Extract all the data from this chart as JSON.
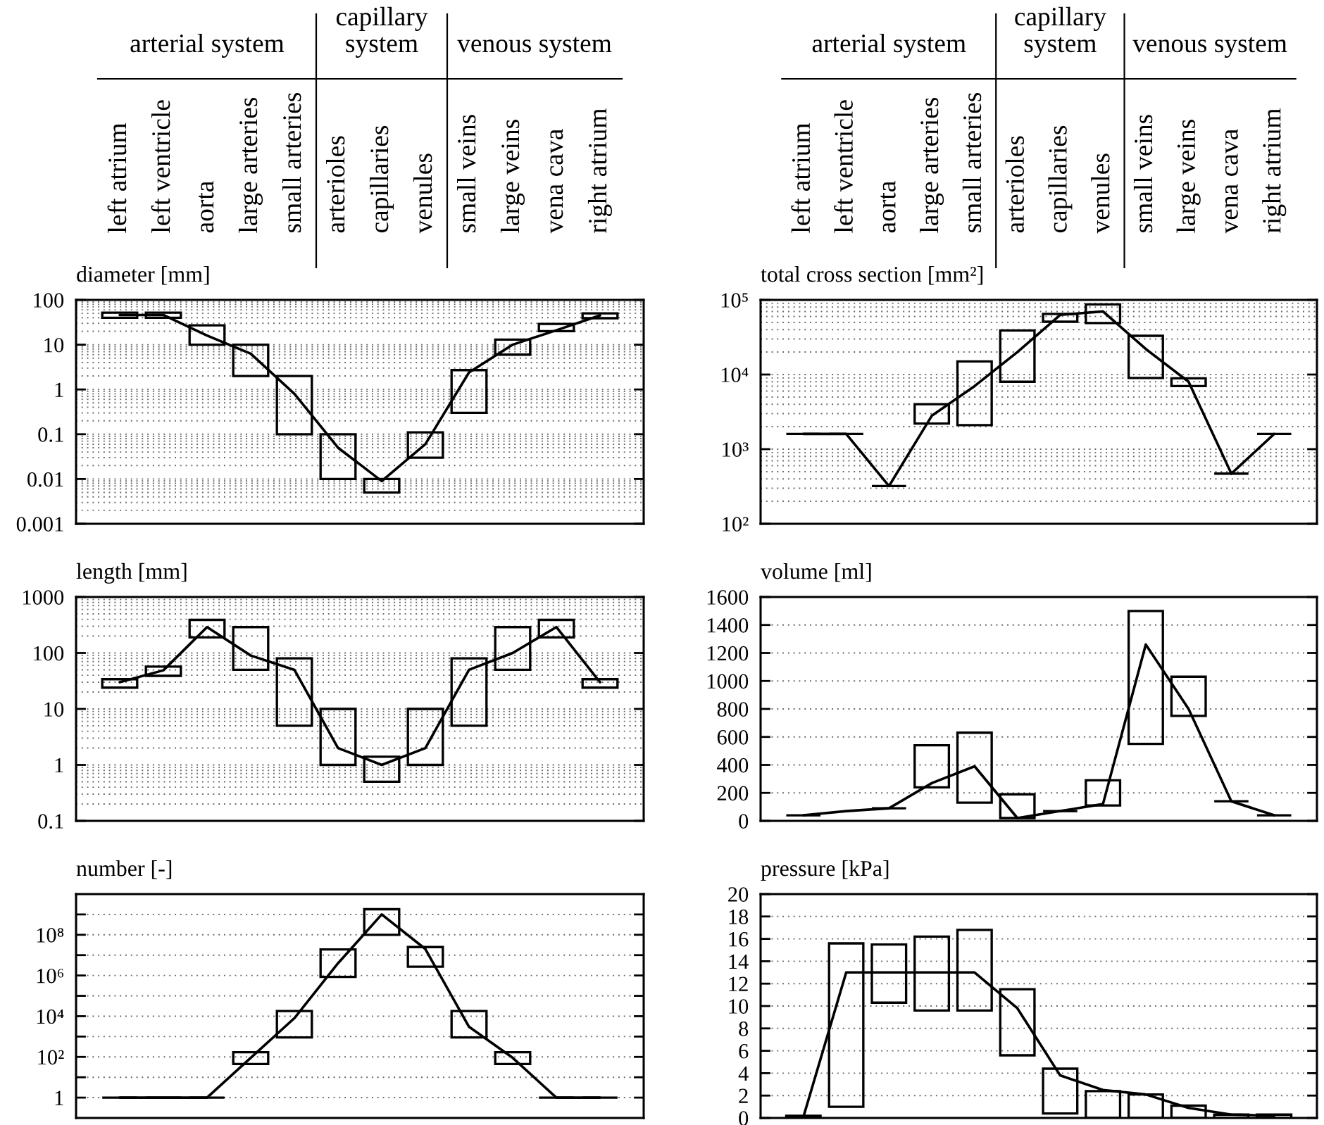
{
  "chart_data": [
    {
      "type": "bar",
      "ylabel": "diameter [mm]",
      "categories": [
        "left atrium",
        "left ventricle",
        "aorta",
        "large arteries",
        "small arteries",
        "arterioles",
        "capillaries",
        "venules",
        "small veins",
        "large veins",
        "vena cava",
        "right atrium"
      ],
      "log": true,
      "ylim": [
        0.001,
        100
      ],
      "yticks": [
        0.001,
        0.01,
        0.1,
        1,
        10,
        100
      ],
      "grid": true,
      "annotations": [
        "arterial system",
        "capillary\nsystem",
        "venous system"
      ],
      "series": [
        {
          "color": "#000000",
          "base": [
            40,
            40,
            10,
            2,
            0.1,
            0.01,
            0.005,
            0.03,
            0.3,
            6,
            20,
            39
          ],
          "values": [
            12,
            12,
            17,
            8,
            1.9,
            0.09,
            0.005,
            0.08,
            2.4,
            7,
            9,
            11
          ]
        },
        {
          "type": "line",
          "color": "#000000",
          "values": [
            46,
            46,
            16,
            6.3,
            0.8,
            0.05,
            0.009,
            0.06,
            2.4,
            10,
            21,
            45
          ]
        }
      ]
    },
    {
      "type": "bar",
      "ylabel": "total cross section [mm²]",
      "categories": [
        "left atrium",
        "left ventricle",
        "aorta",
        "large arteries",
        "small arteries",
        "arterioles",
        "capillaries",
        "venules",
        "small veins",
        "large veins",
        "vena cava",
        "right atrium"
      ],
      "log": true,
      "ylim": [
        100,
        100000
      ],
      "yticks": [
        {
          "value": 100,
          "label": "10²"
        },
        {
          "value": 1000,
          "label": "10³"
        },
        {
          "value": 10000,
          "label": "10⁴"
        },
        {
          "value": 100000,
          "label": "10⁵"
        }
      ],
      "grid": true,
      "annotations": [
        "arterial system",
        "capillary\nsystem",
        "venous system"
      ],
      "series": [
        {
          "color": "#000000",
          "base": [
            1600,
            1600,
            320,
            2200,
            2100,
            8000,
            51000,
            49000,
            9000,
            7000,
            470,
            1600
          ],
          "values": [
            0,
            0,
            0,
            1800,
            12900,
            31000,
            14000,
            38000,
            24000,
            1900,
            0,
            0
          ]
        },
        {
          "type": "line",
          "color": "#000000",
          "values": [
            1600,
            1600,
            320,
            2800,
            7000,
            20000,
            63000,
            70000,
            22000,
            8000,
            470,
            1600
          ]
        }
      ]
    },
    {
      "type": "bar",
      "ylabel": "length [mm]",
      "categories": [
        "left atrium",
        "left ventricle",
        "aorta",
        "large arteries",
        "small arteries",
        "arterioles",
        "capillaries",
        "venules",
        "small veins",
        "large veins",
        "vena cava",
        "right atrium"
      ],
      "tick_labels": "y",
      "log": true,
      "ylim": [
        0.1,
        1000
      ],
      "yticks": [
        0.1,
        1,
        10,
        100,
        1000
      ],
      "grid": true,
      "series": [
        {
          "color": "#000000",
          "base": [
            24,
            39,
            190,
            50,
            5,
            1,
            0.5,
            1,
            5,
            50,
            190,
            24
          ],
          "values": [
            10,
            18,
            200,
            240,
            75,
            9,
            0.9,
            9,
            75,
            240,
            200,
            10
          ]
        },
        {
          "type": "line",
          "color": "#000000",
          "values": [
            30,
            49,
            290,
            90,
            50,
            2,
            1,
            2,
            50,
            100,
            290,
            30
          ]
        }
      ]
    },
    {
      "type": "bar",
      "ylabel": "volume [ml]",
      "categories": [
        "left atrium",
        "left ventricle",
        "aorta",
        "large arteries",
        "small arteries",
        "arterioles",
        "capillaries",
        "venules",
        "small veins",
        "large veins",
        "vena cava",
        "right atrium"
      ],
      "tick_labels": "y",
      "ylim": [
        0,
        1600
      ],
      "yticks": [
        0,
        200,
        400,
        600,
        800,
        1000,
        1200,
        1400,
        1600
      ],
      "grid": true,
      "series": [
        {
          "color": "#000000",
          "base": [
            40,
            null,
            90,
            240,
            130,
            20,
            70,
            110,
            550,
            750,
            140,
            40
          ],
          "values": [
            0,
            null,
            0,
            300,
            500,
            170,
            0,
            180,
            950,
            280,
            0,
            0
          ]
        },
        {
          "type": "line",
          "color": "#000000",
          "values": [
            40,
            70,
            90,
            270,
            390,
            20,
            70,
            120,
            1260,
            800,
            140,
            40
          ]
        }
      ]
    },
    {
      "type": "bar",
      "ylabel": "number [-]",
      "categories": [
        "left atrium",
        "left ventricle",
        "aorta",
        "large arteries",
        "small arteries",
        "arterioles",
        "capillaries",
        "venules",
        "small veins",
        "large veins",
        "vena cava",
        "right atrium"
      ],
      "tick_labels": "y",
      "log": true,
      "ylim": [
        0.1,
        10000000000
      ],
      "yticks": [
        1,
        {
          "value": 10,
          "label": null
        },
        {
          "value": 100,
          "label": "10²"
        },
        {
          "value": 1000,
          "label": null
        },
        {
          "value": 10000,
          "label": "10⁴"
        },
        {
          "value": 100000,
          "label": null
        },
        {
          "value": 1000000,
          "label": "10⁶"
        },
        {
          "value": 10000000,
          "label": null
        },
        {
          "value": 100000000,
          "label": "10⁸"
        },
        {
          "value": 1000000000,
          "label": null
        }
      ],
      "grid": true,
      "series": [
        {
          "color": "#000000",
          "base": [
            1,
            1,
            1,
            45,
            900,
            850000,
            100000000,
            2700000,
            900,
            45,
            1,
            1
          ],
          "values": [
            0,
            0,
            0,
            125,
            17100,
            18150000,
            1700000000,
            22300000,
            17100,
            125,
            0,
            0
          ]
        },
        {
          "type": "line",
          "color": "#000000",
          "values": [
            1,
            1,
            1,
            90,
            8000,
            4000000,
            1000000000,
            20000000,
            3000,
            90,
            1,
            1
          ]
        }
      ]
    },
    {
      "type": "bar",
      "ylabel": "pressure [kPa]",
      "categories": [
        "left atrium",
        "left ventricle",
        "aorta",
        "large arteries",
        "small arteries",
        "arterioles",
        "capillaries",
        "venules",
        "small veins",
        "large veins",
        "vena cava",
        "right atrium"
      ],
      "tick_labels": "y",
      "ylim": [
        0,
        20
      ],
      "yticks": [
        0,
        2,
        4,
        6,
        8,
        10,
        12,
        14,
        16,
        18,
        20
      ],
      "grid": true,
      "series": [
        {
          "color": "#000000",
          "base": [
            0,
            1,
            10.3,
            9.6,
            9.6,
            5.6,
            0.4,
            0,
            0,
            0,
            0,
            0
          ],
          "values": [
            0.2,
            14.6,
            5.2,
            6.6,
            7.2,
            5.9,
            4,
            2.4,
            2.1,
            1.1,
            0.3,
            0.3
          ]
        },
        {
          "type": "line",
          "color": "#000000",
          "values": [
            0.1,
            13,
            13,
            13,
            13,
            9.8,
            3.8,
            2.5,
            2.1,
            0.9,
            0.3,
            0.2
          ]
        }
      ]
    }
  ]
}
